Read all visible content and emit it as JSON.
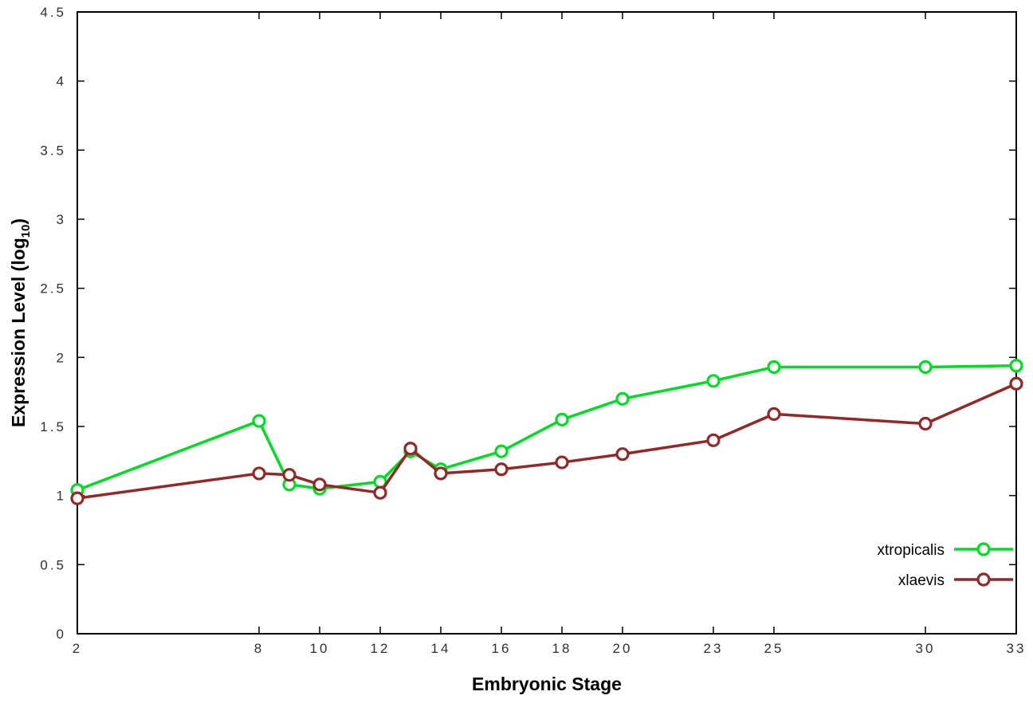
{
  "labels": {
    "x_title": "Embryonic Stage",
    "y_title_main": "Expression Level (log",
    "y_title_sub": "10",
    "y_title_close": ")"
  },
  "chart_data": {
    "type": "line",
    "title": "",
    "xlabel": "Embryonic Stage",
    "ylabel": "Expression Level (log10)",
    "xlim": [
      2,
      33
    ],
    "ylim": [
      0,
      4.5
    ],
    "grid": false,
    "legend_position": "bottom-right-inside",
    "x_ticks": [
      2,
      8,
      10,
      12,
      14,
      16,
      18,
      20,
      23,
      25,
      30,
      33
    ],
    "x_tick_labels": [
      "2",
      "8",
      "10",
      "12",
      "14",
      "16",
      "18",
      "20",
      "23",
      "25",
      "30",
      "33"
    ],
    "y_ticks": [
      0,
      0.5,
      1,
      1.5,
      2,
      2.5,
      3,
      3.5,
      4,
      4.5
    ],
    "y_tick_labels": [
      "0",
      "0.5",
      "1",
      "1.5",
      "2",
      "2.5",
      "3",
      "3.5",
      "4",
      "4.5"
    ],
    "x": [
      2,
      8,
      9,
      10,
      12,
      13,
      14,
      16,
      18,
      20,
      23,
      25,
      30,
      33
    ],
    "series": [
      {
        "name": "xtropicalis",
        "color": "#00dd22",
        "values": [
          1.04,
          1.54,
          1.08,
          1.05,
          1.1,
          1.32,
          1.19,
          1.32,
          1.55,
          1.7,
          1.83,
          1.93,
          1.93,
          1.94
        ]
      },
      {
        "name": "xlaevis",
        "color": "#942727",
        "values": [
          0.98,
          1.16,
          1.15,
          1.08,
          1.02,
          1.34,
          1.16,
          1.19,
          1.24,
          1.3,
          1.4,
          1.59,
          1.52,
          1.81
        ]
      }
    ]
  }
}
